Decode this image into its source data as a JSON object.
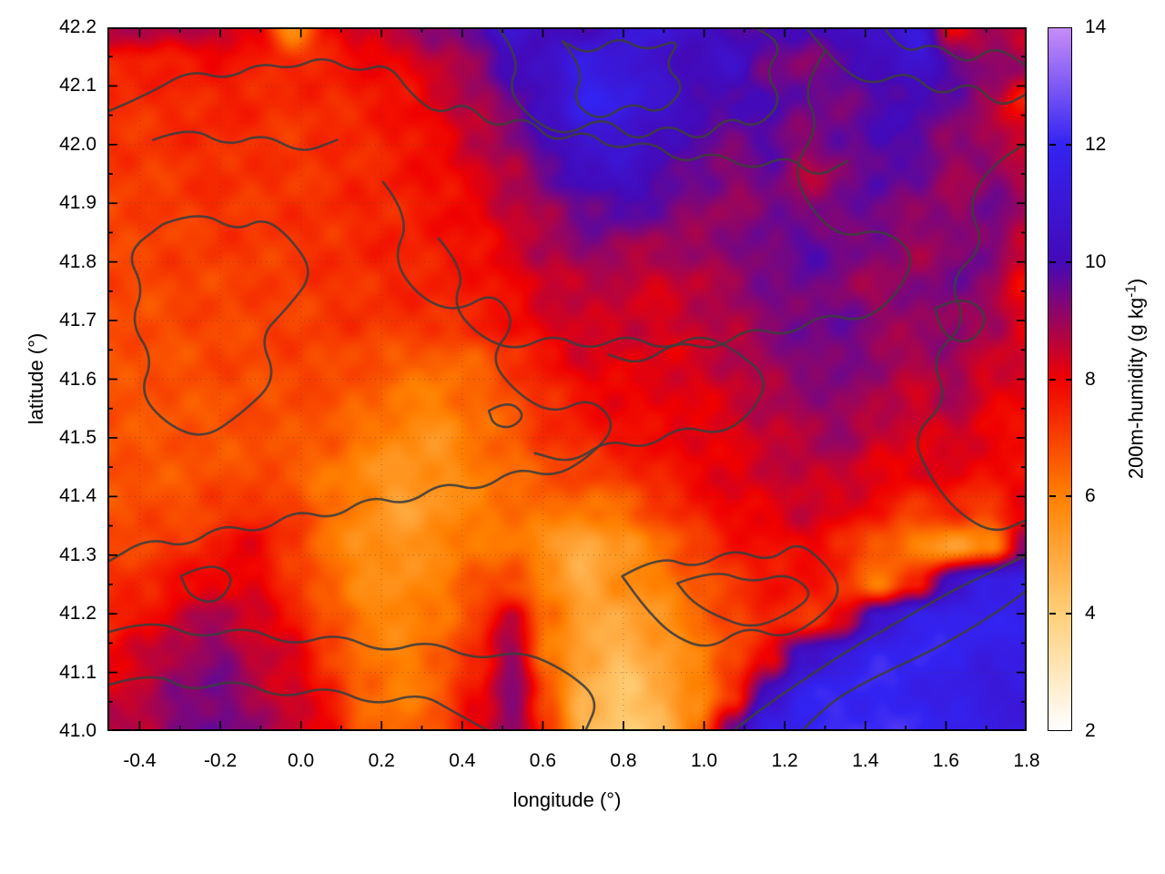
{
  "axes": {
    "x": {
      "title": "longitude (°)",
      "min": -0.48,
      "max": 1.8,
      "major": [
        -0.4,
        -0.2,
        0.0,
        0.2,
        0.4,
        0.6,
        0.8,
        1.0,
        1.2,
        1.4,
        1.6,
        1.8
      ],
      "major_labels": [
        "-0.4",
        "-0.2",
        "0.0",
        "0.2",
        "0.4",
        "0.6",
        "0.8",
        "1.0",
        "1.2",
        "1.4",
        "1.6",
        "1.8"
      ],
      "minor": [
        -0.3,
        -0.1,
        0.1,
        0.3,
        0.5,
        0.7,
        0.9,
        1.1,
        1.3,
        1.5,
        1.7
      ]
    },
    "y": {
      "title": "latitude (°)",
      "min": 41.0,
      "max": 42.2,
      "major": [
        41.0,
        41.1,
        41.2,
        41.3,
        41.4,
        41.5,
        41.6,
        41.7,
        41.8,
        41.9,
        42.0,
        42.1,
        42.2
      ],
      "major_labels": [
        "41.0",
        "41.1",
        "41.2",
        "41.3",
        "41.4",
        "41.5",
        "41.6",
        "41.7",
        "41.8",
        "41.9",
        "42.0",
        "42.1",
        "42.2"
      ],
      "minor": [
        41.05,
        41.15,
        41.25,
        41.35,
        41.45,
        41.55,
        41.65,
        41.75,
        41.85,
        41.95,
        42.05,
        42.15
      ]
    },
    "grid": "dotted"
  },
  "colorbar": {
    "title_prefix": "200m-humidity (g kg",
    "title_sup": "-1",
    "title_suffix": ")",
    "min": 2,
    "max": 14,
    "ticks": [
      2,
      4,
      6,
      8,
      10,
      12,
      14
    ],
    "tick_labels": [
      "2",
      "4",
      "6",
      "8",
      "10",
      "12",
      "14"
    ],
    "dash_ticks": [
      4,
      6,
      8,
      10,
      12
    ]
  },
  "palette": {
    "points": [
      [
        2,
        "#ffffff"
      ],
      [
        4,
        "#ffcf78"
      ],
      [
        6,
        "#ff8000"
      ],
      [
        8,
        "#f00000"
      ],
      [
        10,
        "#4409b8"
      ],
      [
        12,
        "#3323f2"
      ],
      [
        14,
        "#c68df7"
      ]
    ]
  },
  "chart_data": {
    "type": "heatmap",
    "title": "",
    "xlabel": "longitude (°)",
    "ylabel": "latitude (°)",
    "zlabel": "200m-humidity (g kg-1)",
    "xlim": [
      -0.48,
      1.8
    ],
    "ylim": [
      41.0,
      42.2
    ],
    "zlim": [
      2,
      14
    ],
    "grid_cols": 26,
    "grid_rows": 20,
    "values_x10": [
      [
        86,
        87,
        88,
        87,
        82,
        55,
        78,
        85,
        88,
        92,
        95,
        110,
        102,
        100,
        108,
        112,
        105,
        100,
        98,
        100,
        102,
        108,
        112,
        80,
        88,
        86
      ],
      [
        76,
        75,
        76,
        77,
        76,
        74,
        76,
        78,
        80,
        85,
        92,
        100,
        105,
        115,
        112,
        105,
        100,
        105,
        95,
        92,
        98,
        100,
        108,
        98,
        92,
        88
      ],
      [
        74,
        73,
        74,
        75,
        74,
        73,
        74,
        76,
        78,
        82,
        88,
        95,
        105,
        118,
        115,
        108,
        102,
        98,
        100,
        95,
        95,
        98,
        100,
        95,
        90,
        75
      ],
      [
        72,
        72,
        73,
        74,
        73,
        72,
        73,
        74,
        76,
        80,
        85,
        92,
        100,
        110,
        108,
        102,
        98,
        95,
        98,
        92,
        95,
        100,
        98,
        92,
        88,
        85
      ],
      [
        71,
        71,
        72,
        73,
        72,
        72,
        73,
        74,
        76,
        78,
        82,
        88,
        95,
        102,
        105,
        100,
        95,
        92,
        95,
        88,
        92,
        98,
        95,
        90,
        92,
        88
      ],
      [
        70,
        70,
        71,
        72,
        72,
        72,
        73,
        74,
        75,
        77,
        80,
        85,
        90,
        95,
        98,
        95,
        92,
        90,
        95,
        92,
        95,
        95,
        92,
        90,
        95,
        88
      ],
      [
        70,
        70,
        70,
        71,
        71,
        72,
        73,
        74,
        75,
        76,
        78,
        82,
        88,
        92,
        90,
        88,
        90,
        92,
        95,
        98,
        95,
        92,
        90,
        92,
        95,
        82
      ],
      [
        69,
        69,
        70,
        70,
        70,
        71,
        72,
        73,
        74,
        75,
        76,
        80,
        84,
        86,
        85,
        84,
        86,
        90,
        93,
        95,
        92,
        90,
        92,
        95,
        90,
        80
      ],
      [
        68,
        68,
        69,
        69,
        70,
        70,
        71,
        72,
        72,
        73,
        74,
        78,
        82,
        85,
        84,
        83,
        85,
        88,
        92,
        95,
        95,
        92,
        90,
        92,
        88,
        82
      ],
      [
        68,
        68,
        68,
        69,
        69,
        70,
        70,
        68,
        66,
        64,
        66,
        72,
        78,
        82,
        82,
        82,
        84,
        86,
        90,
        93,
        95,
        90,
        88,
        90,
        85,
        83
      ],
      [
        68,
        67,
        67,
        68,
        68,
        68,
        68,
        66,
        62,
        60,
        64,
        68,
        74,
        78,
        80,
        80,
        82,
        84,
        88,
        90,
        92,
        88,
        85,
        88,
        82,
        80
      ],
      [
        67,
        67,
        67,
        67,
        68,
        68,
        66,
        62,
        58,
        56,
        62,
        66,
        72,
        76,
        78,
        80,
        80,
        82,
        85,
        88,
        90,
        85,
        82,
        85,
        80,
        78
      ],
      [
        67,
        67,
        67,
        68,
        68,
        66,
        62,
        58,
        54,
        56,
        60,
        64,
        68,
        70,
        72,
        76,
        80,
        82,
        84,
        86,
        85,
        82,
        80,
        82,
        78,
        80
      ],
      [
        68,
        68,
        68,
        70,
        74,
        70,
        64,
        58,
        52,
        55,
        60,
        62,
        64,
        62,
        64,
        70,
        76,
        80,
        82,
        84,
        82,
        78,
        72,
        75,
        70,
        80
      ],
      [
        70,
        70,
        72,
        76,
        80,
        72,
        62,
        56,
        55,
        58,
        62,
        62,
        55,
        48,
        55,
        62,
        70,
        76,
        78,
        80,
        75,
        65,
        60,
        52,
        60,
        90
      ],
      [
        72,
        74,
        78,
        82,
        80,
        72,
        64,
        58,
        56,
        60,
        66,
        70,
        58,
        50,
        56,
        60,
        66,
        72,
        76,
        78,
        72,
        62,
        75,
        105,
        115,
        118
      ],
      [
        75,
        78,
        85,
        88,
        84,
        78,
        68,
        60,
        58,
        62,
        70,
        85,
        62,
        52,
        50,
        55,
        62,
        70,
        75,
        72,
        80,
        108,
        118,
        120,
        118,
        118
      ],
      [
        80,
        84,
        90,
        92,
        86,
        82,
        72,
        62,
        60,
        64,
        75,
        90,
        62,
        50,
        46,
        52,
        60,
        68,
        80,
        105,
        115,
        120,
        120,
        118,
        115,
        115
      ],
      [
        84,
        86,
        92,
        95,
        88,
        84,
        76,
        64,
        60,
        66,
        78,
        92,
        68,
        48,
        42,
        48,
        58,
        72,
        105,
        118,
        120,
        120,
        118,
        115,
        112,
        112
      ],
      [
        86,
        88,
        94,
        96,
        90,
        86,
        80,
        66,
        62,
        68,
        80,
        94,
        70,
        46,
        40,
        46,
        60,
        95,
        115,
        120,
        122,
        122,
        120,
        118,
        115,
        114
      ]
    ],
    "contour_color": "#3d3d3d",
    "contours": [
      [
        0.0,
        0.12,
        0.045,
        0.095,
        0.09,
        0.06,
        0.13,
        0.075,
        0.165,
        0.05,
        0.2,
        0.06,
        0.235,
        0.04,
        0.27,
        0.065,
        0.305,
        0.05,
        0.33,
        0.095,
        0.36,
        0.125,
        0.39,
        0.105,
        0.42,
        0.145,
        0.455,
        0.125,
        0.485,
        0.165,
        0.52,
        0.145,
        0.55,
        0.175,
        0.59,
        0.16,
        0.625,
        0.195,
        0.66,
        0.175,
        0.7,
        0.205,
        0.74,
        0.18,
        0.77,
        0.215,
        0.805,
        0.19
      ],
      [
        0.425,
        0.0,
        0.45,
        0.045,
        0.435,
        0.09,
        0.465,
        0.135,
        0.5,
        0.155,
        0.54,
        0.125,
        0.575,
        0.165,
        0.61,
        0.135,
        0.645,
        0.165,
        0.675,
        0.125,
        0.705,
        0.145,
        0.735,
        0.105,
        0.715,
        0.065,
        0.735,
        0.025,
        0.705,
        0.0
      ],
      [
        0.495,
        0.02,
        0.52,
        0.06,
        0.505,
        0.105,
        0.535,
        0.135,
        0.57,
        0.105,
        0.6,
        0.125,
        0.63,
        0.085,
        0.605,
        0.055,
        0.625,
        0.015,
        0.585,
        0.035,
        0.555,
        0.012,
        0.525,
        0.04,
        0.495,
        0.02
      ],
      [
        0.76,
        0.0,
        0.79,
        0.05,
        0.83,
        0.085,
        0.87,
        0.06,
        0.905,
        0.1,
        0.94,
        0.075,
        0.97,
        0.115,
        1.0,
        0.095
      ],
      [
        0.845,
        0.0,
        0.865,
        0.04,
        0.9,
        0.02,
        0.935,
        0.055,
        0.965,
        0.025,
        1.0,
        0.055
      ],
      [
        1.0,
        0.165,
        0.965,
        0.19,
        0.935,
        0.25,
        0.955,
        0.31,
        0.915,
        0.36,
        0.935,
        0.42,
        0.895,
        0.47,
        0.915,
        0.53,
        0.875,
        0.58,
        0.895,
        0.64,
        0.925,
        0.69,
        0.965,
        0.72,
        1.0,
        0.7
      ],
      [
        0.78,
        0.035,
        0.755,
        0.085,
        0.775,
        0.14,
        0.745,
        0.2,
        0.765,
        0.26,
        0.8,
        0.3,
        0.84,
        0.285,
        0.88,
        0.32,
        0.86,
        0.38,
        0.82,
        0.42,
        0.78,
        0.405,
        0.74,
        0.44,
        0.7,
        0.425,
        0.66,
        0.46,
        0.62,
        0.445,
        0.58,
        0.48,
        0.545,
        0.465
      ],
      [
        0.06,
        0.28,
        0.1,
        0.26,
        0.14,
        0.29,
        0.17,
        0.27,
        0.2,
        0.3,
        0.225,
        0.35,
        0.195,
        0.4,
        0.165,
        0.44,
        0.185,
        0.5,
        0.145,
        0.55,
        0.105,
        0.585,
        0.065,
        0.565,
        0.035,
        0.52,
        0.05,
        0.47,
        0.025,
        0.42,
        0.04,
        0.37,
        0.02,
        0.32,
        0.06,
        0.28
      ],
      [
        0.3,
        0.22,
        0.33,
        0.27,
        0.31,
        0.33,
        0.34,
        0.385,
        0.38,
        0.405,
        0.42,
        0.375,
        0.445,
        0.42,
        0.415,
        0.47,
        0.445,
        0.52,
        0.485,
        0.55,
        0.525,
        0.525,
        0.555,
        0.565,
        0.525,
        0.61,
        0.485,
        0.64,
        0.445,
        0.625,
        0.405,
        0.66,
        0.365,
        0.645,
        0.325,
        0.68,
        0.285,
        0.665,
        0.245,
        0.7,
        0.205,
        0.685,
        0.165,
        0.72,
        0.125,
        0.705,
        0.085,
        0.74,
        0.045,
        0.725,
        0.0,
        0.76
      ],
      [
        0.36,
        0.3,
        0.39,
        0.345,
        0.375,
        0.395,
        0.405,
        0.44,
        0.445,
        0.46,
        0.485,
        0.435,
        0.525,
        0.46,
        0.565,
        0.435,
        0.605,
        0.46,
        0.645,
        0.435,
        0.685,
        0.46,
        0.72,
        0.5,
        0.7,
        0.55,
        0.665,
        0.58,
        0.625,
        0.565,
        0.585,
        0.6,
        0.545,
        0.585,
        0.505,
        0.62,
        0.465,
        0.605
      ],
      [
        0.0,
        0.86,
        0.05,
        0.84,
        0.1,
        0.87,
        0.15,
        0.85,
        0.2,
        0.88,
        0.25,
        0.86,
        0.3,
        0.89,
        0.35,
        0.87,
        0.4,
        0.9,
        0.45,
        0.885,
        0.5,
        0.915,
        0.535,
        0.955,
        0.52,
        1.0
      ],
      [
        0.0,
        0.935,
        0.05,
        0.915,
        0.09,
        0.945,
        0.14,
        0.925,
        0.19,
        0.955,
        0.24,
        0.935,
        0.29,
        0.965,
        0.34,
        0.945,
        0.38,
        0.975,
        0.415,
        1.0
      ],
      [
        0.56,
        0.78,
        0.6,
        0.75,
        0.64,
        0.77,
        0.68,
        0.74,
        0.72,
        0.76,
        0.75,
        0.73,
        0.78,
        0.76,
        0.8,
        0.8,
        0.775,
        0.84,
        0.735,
        0.87,
        0.695,
        0.85,
        0.655,
        0.885,
        0.615,
        0.865,
        0.585,
        0.825,
        0.56,
        0.78
      ],
      [
        0.62,
        0.79,
        0.66,
        0.77,
        0.7,
        0.79,
        0.74,
        0.775,
        0.77,
        0.805,
        0.74,
        0.835,
        0.7,
        0.855,
        0.66,
        0.835,
        0.635,
        0.815,
        0.62,
        0.79
      ],
      [
        0.755,
        1.0,
        0.785,
        0.96,
        0.825,
        0.93,
        0.865,
        0.905,
        0.905,
        0.88,
        0.945,
        0.85,
        0.98,
        0.82,
        1.0,
        0.8
      ],
      [
        0.68,
        1.0,
        0.72,
        0.96,
        0.76,
        0.925,
        0.8,
        0.89,
        0.84,
        0.86,
        0.88,
        0.83,
        0.92,
        0.8,
        0.96,
        0.775,
        1.0,
        0.75
      ],
      [
        0.9,
        0.4,
        0.93,
        0.38,
        0.96,
        0.41,
        0.94,
        0.45,
        0.91,
        0.44,
        0.9,
        0.4
      ],
      [
        0.08,
        0.78,
        0.11,
        0.76,
        0.14,
        0.78,
        0.12,
        0.82,
        0.09,
        0.81,
        0.08,
        0.78
      ],
      [
        0.415,
        0.545,
        0.435,
        0.53,
        0.455,
        0.55,
        0.44,
        0.57,
        0.42,
        0.565,
        0.415,
        0.545
      ],
      [
        0.05,
        0.16,
        0.09,
        0.14,
        0.13,
        0.17,
        0.17,
        0.15,
        0.21,
        0.18,
        0.25,
        0.16
      ]
    ]
  }
}
